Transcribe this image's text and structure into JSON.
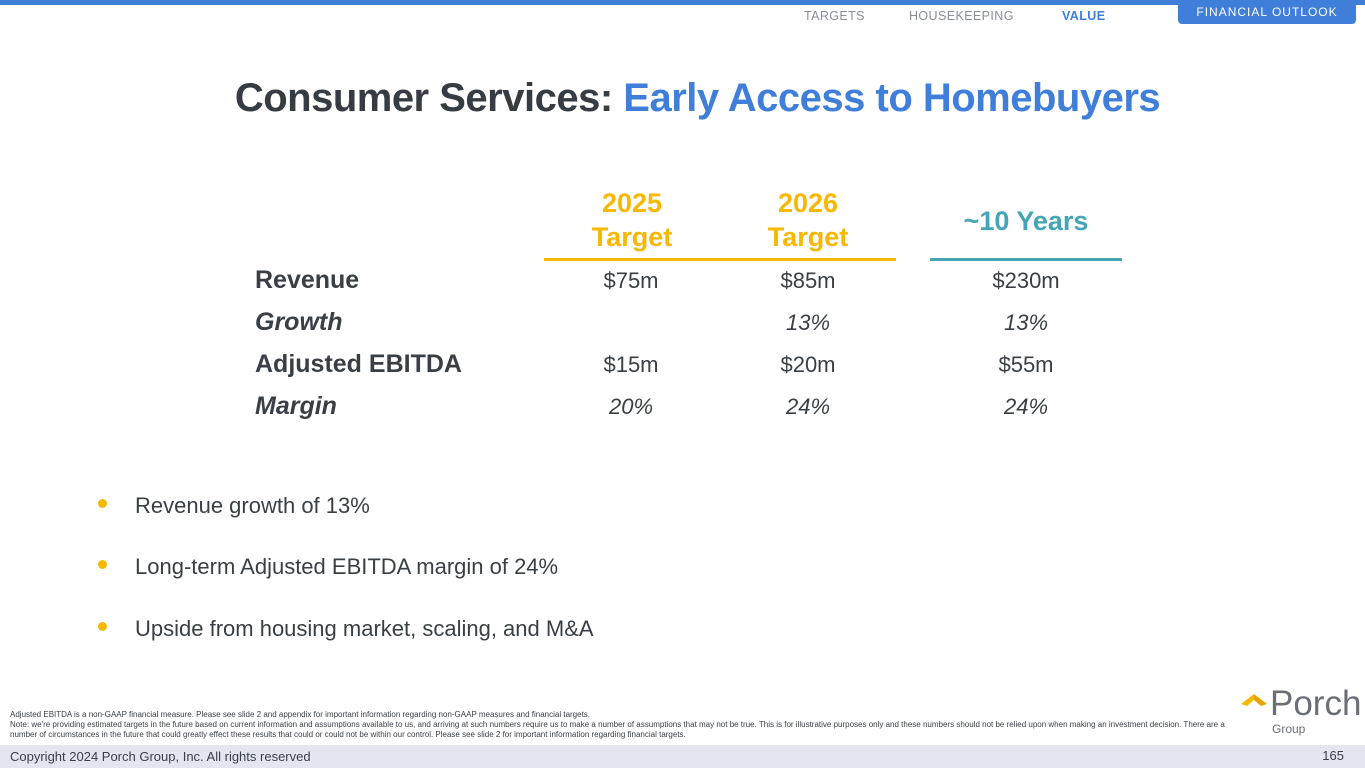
{
  "nav": {
    "items": [
      "TARGETS",
      "HOUSEKEEPING",
      "VALUE"
    ],
    "section_tag": "FINANCIAL OUTLOOK"
  },
  "slide": {
    "title_part1": "Consumer Services:",
    "title_part2": "Early Access to Homebuyers"
  },
  "table": {
    "columns": [
      {
        "line1": "2025",
        "line2": "Target"
      },
      {
        "line1": "2026",
        "line2": "Target"
      },
      {
        "line1": "~10 Years",
        "line2": ""
      }
    ],
    "rows": [
      {
        "label": "Revenue",
        "values": [
          "$75m",
          "$85m",
          "$230m"
        ]
      },
      {
        "label": "Growth",
        "values": [
          "",
          "13%",
          "13%"
        ]
      },
      {
        "label": "Adjusted EBITDA",
        "values": [
          "$15m",
          "$20m",
          "$55m"
        ]
      },
      {
        "label": "Margin",
        "values": [
          "20%",
          "24%",
          "24%"
        ]
      }
    ]
  },
  "bullets": [
    "Revenue growth of 13%",
    "Long-term Adjusted EBITDA margin of 24%",
    "Upside from housing market, scaling, and M&A"
  ],
  "footnotes": [
    "Adjusted EBITDA is a non-GAAP financial measure. Please see slide 2 and appendix for important information regarding non-GAAP measures and financial targets.",
    "Note: we're providing estimated targets in the future based on current information and assumptions available to us, and arriving at such numbers require us to make a number of assumptions that may not be true. This is for illustrative purposes only and these numbers should not be relied upon when making an investment decision. There are a number of circumstances in the future that could greatly effect these results that could or could not be within our control. Please see slide 2 for important information regarding financial targets."
  ],
  "logo": {
    "word": "Porch",
    "sub": "Group"
  },
  "footer": {
    "copyright": "Copyright 2024 Porch Group, Inc. All rights reserved",
    "page_number": "165"
  },
  "colors": {
    "accent_blue": "#3f7fd9",
    "accent_yellow": "#f6b800",
    "accent_teal": "#44a5b4",
    "text_dark": "#3a3f45"
  }
}
